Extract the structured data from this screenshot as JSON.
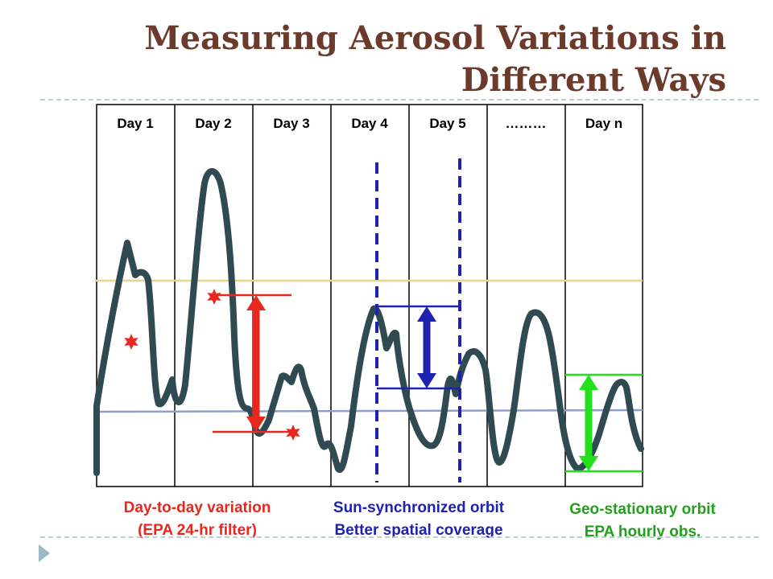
{
  "slide": {
    "title_line1": "Measuring Aerosol Variations in",
    "title_line2": "Different Ways"
  },
  "table": {
    "columns": [
      "Day 1",
      "Day 2",
      "Day 3",
      "Day 4",
      "Day 5",
      "………",
      "Day n"
    ]
  },
  "captions": {
    "day_to_day_line1": "Day-to-day variation",
    "day_to_day_line2": "(EPA 24-hr filter)",
    "sun_sync_line1": "Sun-synchronized orbit",
    "sun_sync_line2": "Better spatial coverage",
    "geo_line1": "Geo-stationary orbit",
    "geo_line2": "EPA hourly obs."
  },
  "colors": {
    "title": "#6b3a2a",
    "aerosol_curve": "#2f4a50",
    "day_to_day": "#e8281f",
    "sun_sync": "#1d22b0",
    "geo": "#22a01c",
    "reference_high": "#e8d48a",
    "reference_low": "#8fa0c8",
    "slide_bullet": "#9cb9c6"
  },
  "icons": {
    "slide_bullet": "triangle-right-icon",
    "sample_marker": "star-icon"
  }
}
